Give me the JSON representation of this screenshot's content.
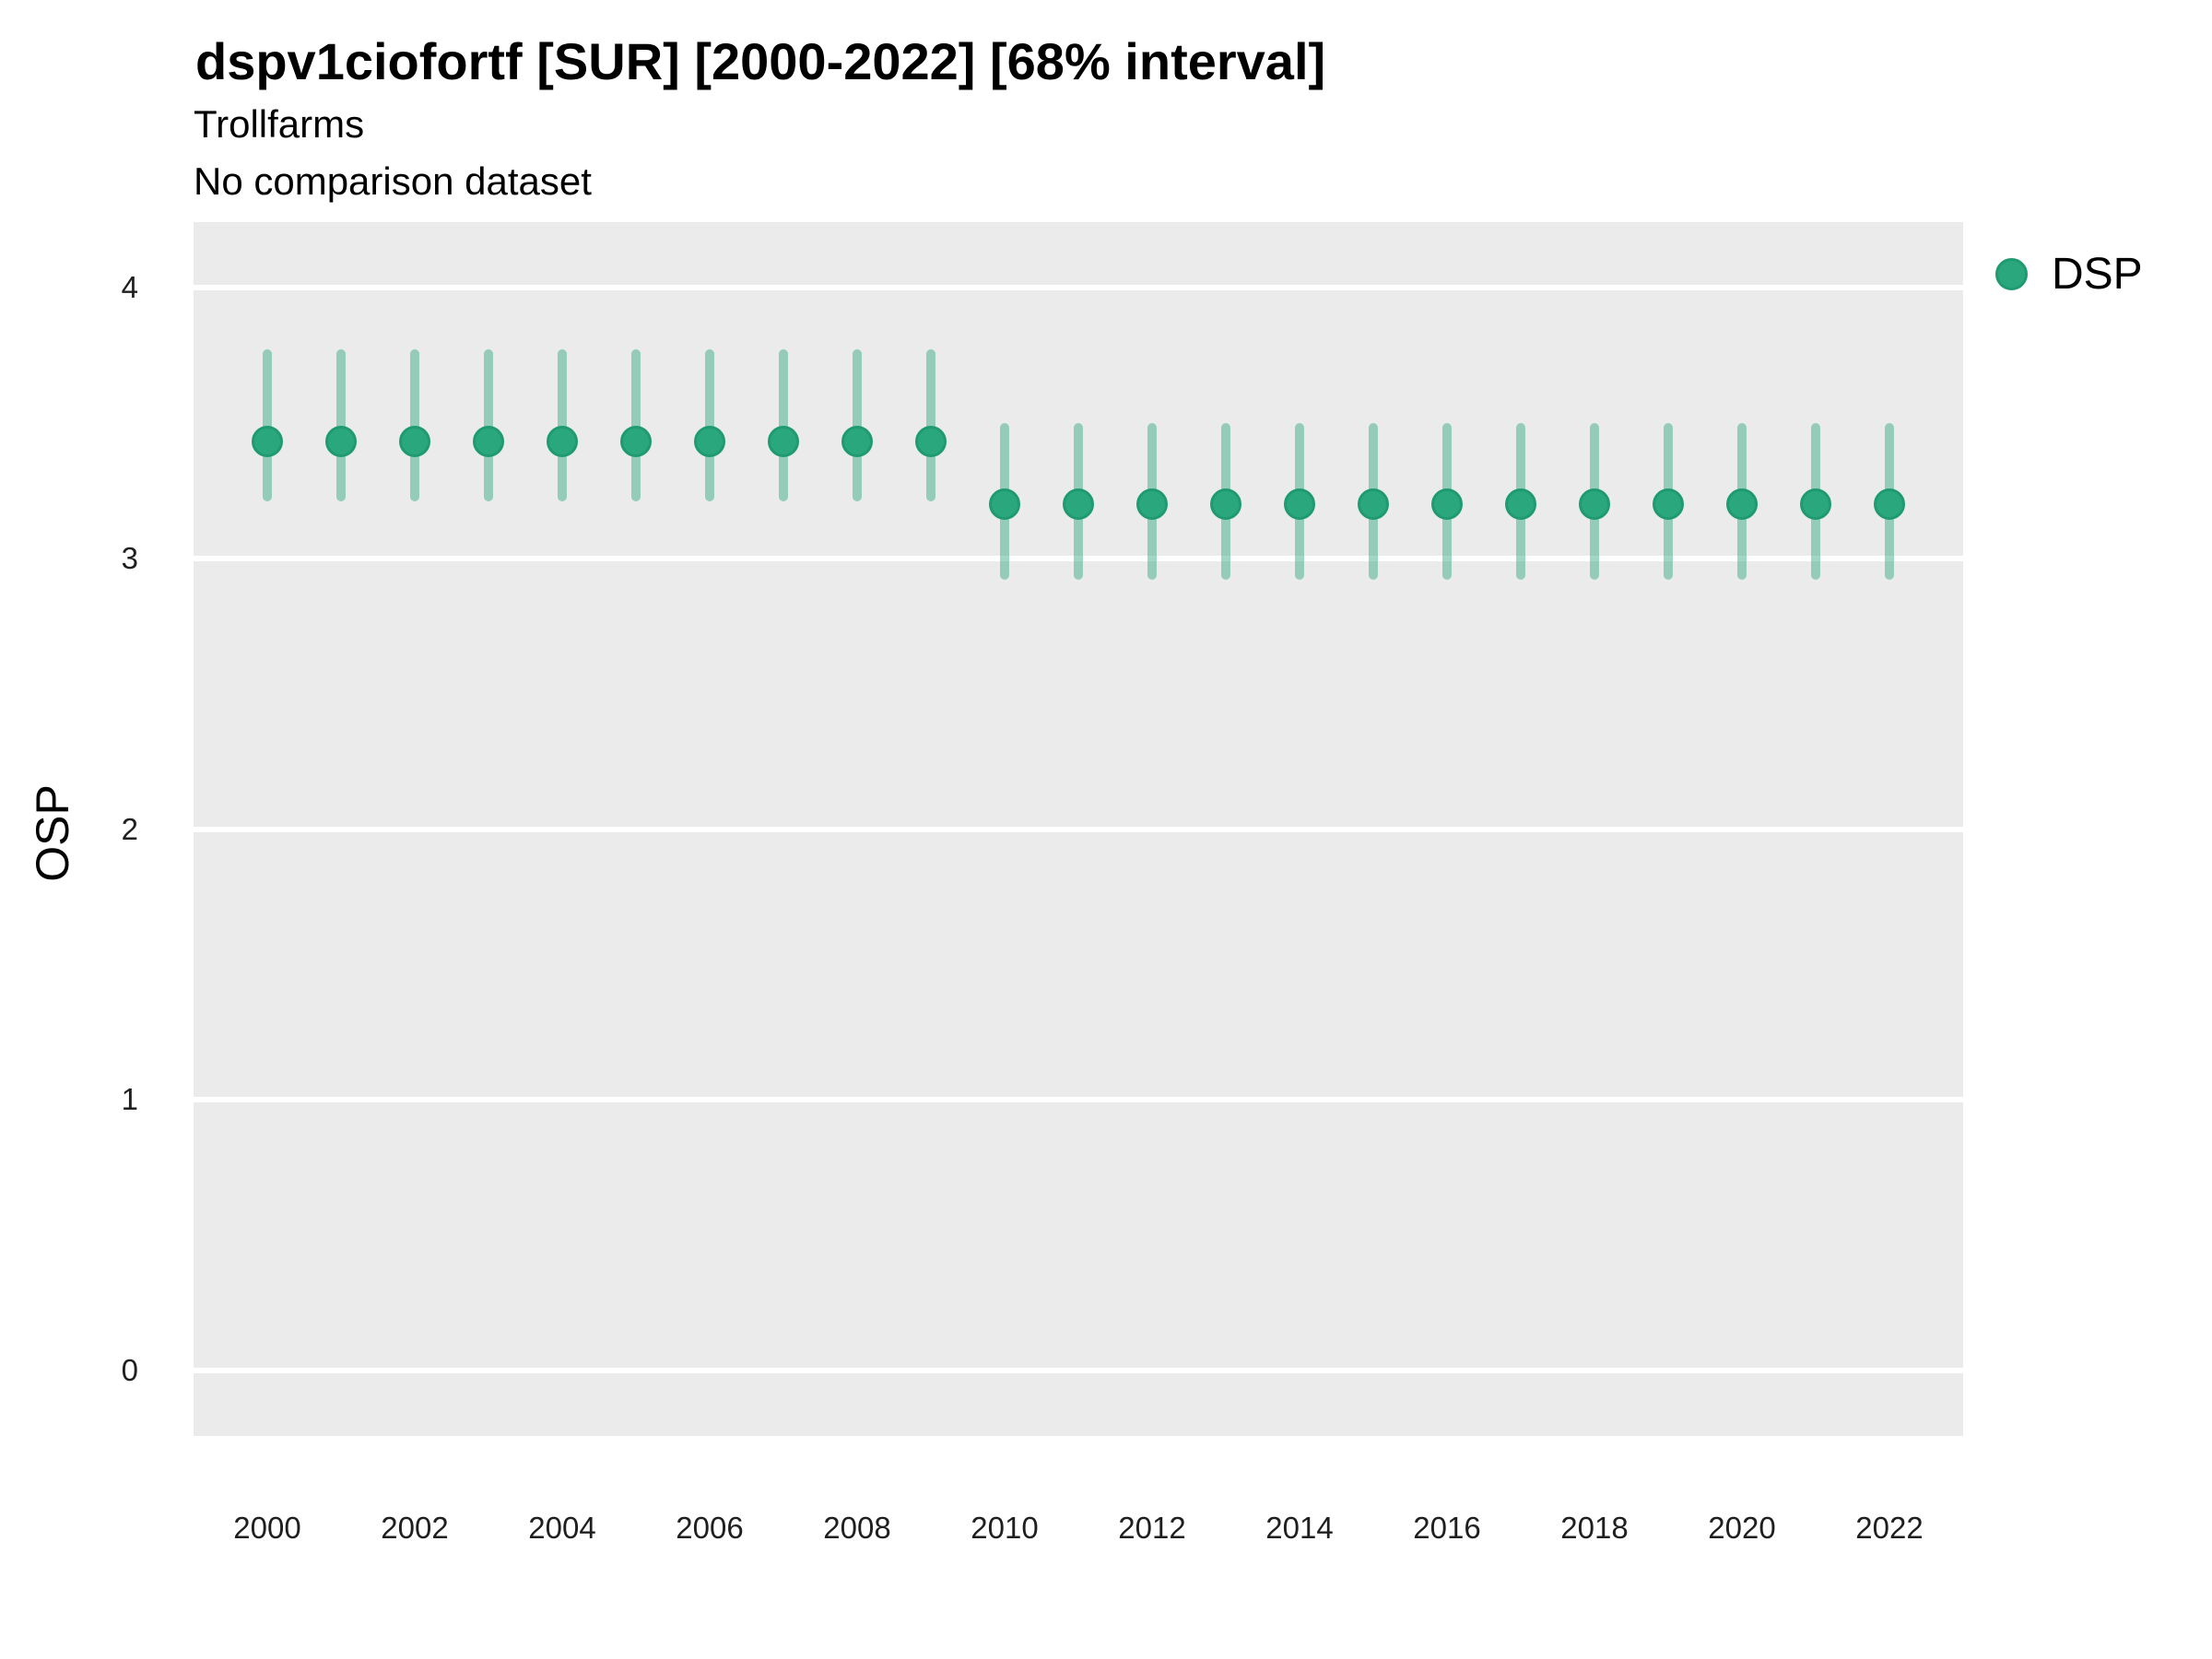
{
  "header": {
    "title": "dspv1ciofortf [SUR] [2000-2022] [68% interval]",
    "subtitle": "Trollfarms",
    "note": "No comparison dataset"
  },
  "legend": {
    "items": [
      {
        "label": "DSP",
        "marker": "circle-icon",
        "color": "#2AA77D",
        "stroke": "#1F9A71"
      }
    ]
  },
  "axes": {
    "y_title": "OSP",
    "y_ticks": [
      "0",
      "1",
      "2",
      "3",
      "4"
    ],
    "x_ticks": [
      "2000",
      "2002",
      "2004",
      "2006",
      "2008",
      "2010",
      "2012",
      "2014",
      "2016",
      "2018",
      "2020",
      "2022"
    ]
  },
  "colors": {
    "panel_bg": "#EBEBEB",
    "grid": "#FFFFFF",
    "point_fill": "#2AA77D",
    "point_stroke": "#1F9A71",
    "interval_band": "rgba(42,167,125,0.45)",
    "text": "#000000"
  },
  "chart_data": {
    "type": "pointrange",
    "title": "dspv1ciofortf [SUR] [2000-2022] [68% interval]",
    "subtitle": "Trollfarms",
    "note": "No comparison dataset",
    "xlabel": "",
    "ylabel": "OSP",
    "interval": "68%",
    "grid": "major-horizontal-only",
    "legend_position": "right",
    "xlim": [
      1999,
      2023
    ],
    "ylim": [
      -0.24,
      4.24
    ],
    "y_ticks": [
      0,
      1,
      2,
      3,
      4
    ],
    "x_ticks": [
      2000,
      2002,
      2004,
      2006,
      2008,
      2010,
      2012,
      2014,
      2016,
      2018,
      2020,
      2022
    ],
    "series": [
      {
        "name": "DSP",
        "points": [
          {
            "x": 2000,
            "y": 3.43,
            "lo": 3.21,
            "hi": 3.77
          },
          {
            "x": 2001,
            "y": 3.43,
            "lo": 3.21,
            "hi": 3.77
          },
          {
            "x": 2002,
            "y": 3.43,
            "lo": 3.21,
            "hi": 3.77
          },
          {
            "x": 2003,
            "y": 3.43,
            "lo": 3.21,
            "hi": 3.77
          },
          {
            "x": 2004,
            "y": 3.43,
            "lo": 3.21,
            "hi": 3.77
          },
          {
            "x": 2005,
            "y": 3.43,
            "lo": 3.21,
            "hi": 3.77
          },
          {
            "x": 2006,
            "y": 3.43,
            "lo": 3.21,
            "hi": 3.77
          },
          {
            "x": 2007,
            "y": 3.43,
            "lo": 3.21,
            "hi": 3.77
          },
          {
            "x": 2008,
            "y": 3.43,
            "lo": 3.21,
            "hi": 3.77
          },
          {
            "x": 2009,
            "y": 3.43,
            "lo": 3.21,
            "hi": 3.77
          },
          {
            "x": 2010,
            "y": 3.2,
            "lo": 2.92,
            "hi": 3.5
          },
          {
            "x": 2011,
            "y": 3.2,
            "lo": 2.92,
            "hi": 3.5
          },
          {
            "x": 2012,
            "y": 3.2,
            "lo": 2.92,
            "hi": 3.5
          },
          {
            "x": 2013,
            "y": 3.2,
            "lo": 2.92,
            "hi": 3.5
          },
          {
            "x": 2014,
            "y": 3.2,
            "lo": 2.92,
            "hi": 3.5
          },
          {
            "x": 2015,
            "y": 3.2,
            "lo": 2.92,
            "hi": 3.5
          },
          {
            "x": 2016,
            "y": 3.2,
            "lo": 2.92,
            "hi": 3.5
          },
          {
            "x": 2017,
            "y": 3.2,
            "lo": 2.92,
            "hi": 3.5
          },
          {
            "x": 2018,
            "y": 3.2,
            "lo": 2.92,
            "hi": 3.5
          },
          {
            "x": 2019,
            "y": 3.2,
            "lo": 2.92,
            "hi": 3.5
          },
          {
            "x": 2020,
            "y": 3.2,
            "lo": 2.92,
            "hi": 3.5
          },
          {
            "x": 2021,
            "y": 3.2,
            "lo": 2.92,
            "hi": 3.5
          },
          {
            "x": 2022,
            "y": 3.2,
            "lo": 2.92,
            "hi": 3.5
          }
        ]
      }
    ]
  }
}
